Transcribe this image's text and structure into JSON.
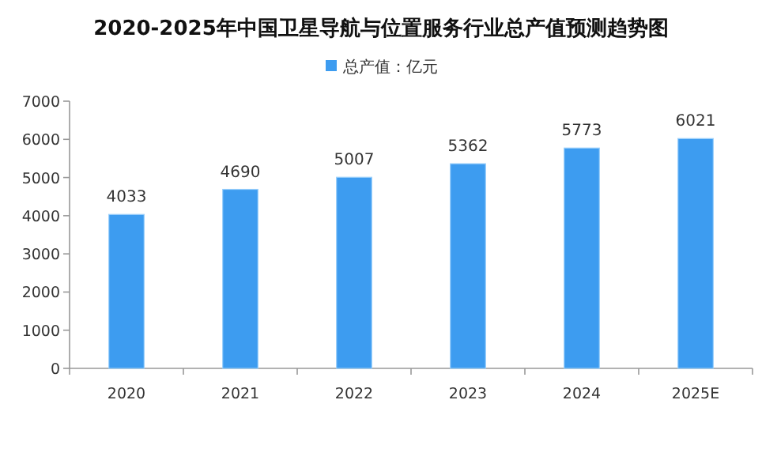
{
  "chart_data": {
    "type": "bar",
    "title": "2020-2025年中国卫星导航与位置服务行业总产值预测趋势图",
    "categories": [
      "2020",
      "2021",
      "2022",
      "2023",
      "2024",
      "2025E"
    ],
    "series": [
      {
        "name": "总产值：亿元",
        "color": "#3d9cf0",
        "values": [
          4033,
          4690,
          5007,
          5362,
          5773,
          6021
        ]
      }
    ],
    "ylim": [
      0,
      7000
    ],
    "yticks": [
      0,
      1000,
      2000,
      3000,
      4000,
      5000,
      6000,
      7000
    ],
    "data_labels": true,
    "grid": false,
    "legend": "top"
  }
}
